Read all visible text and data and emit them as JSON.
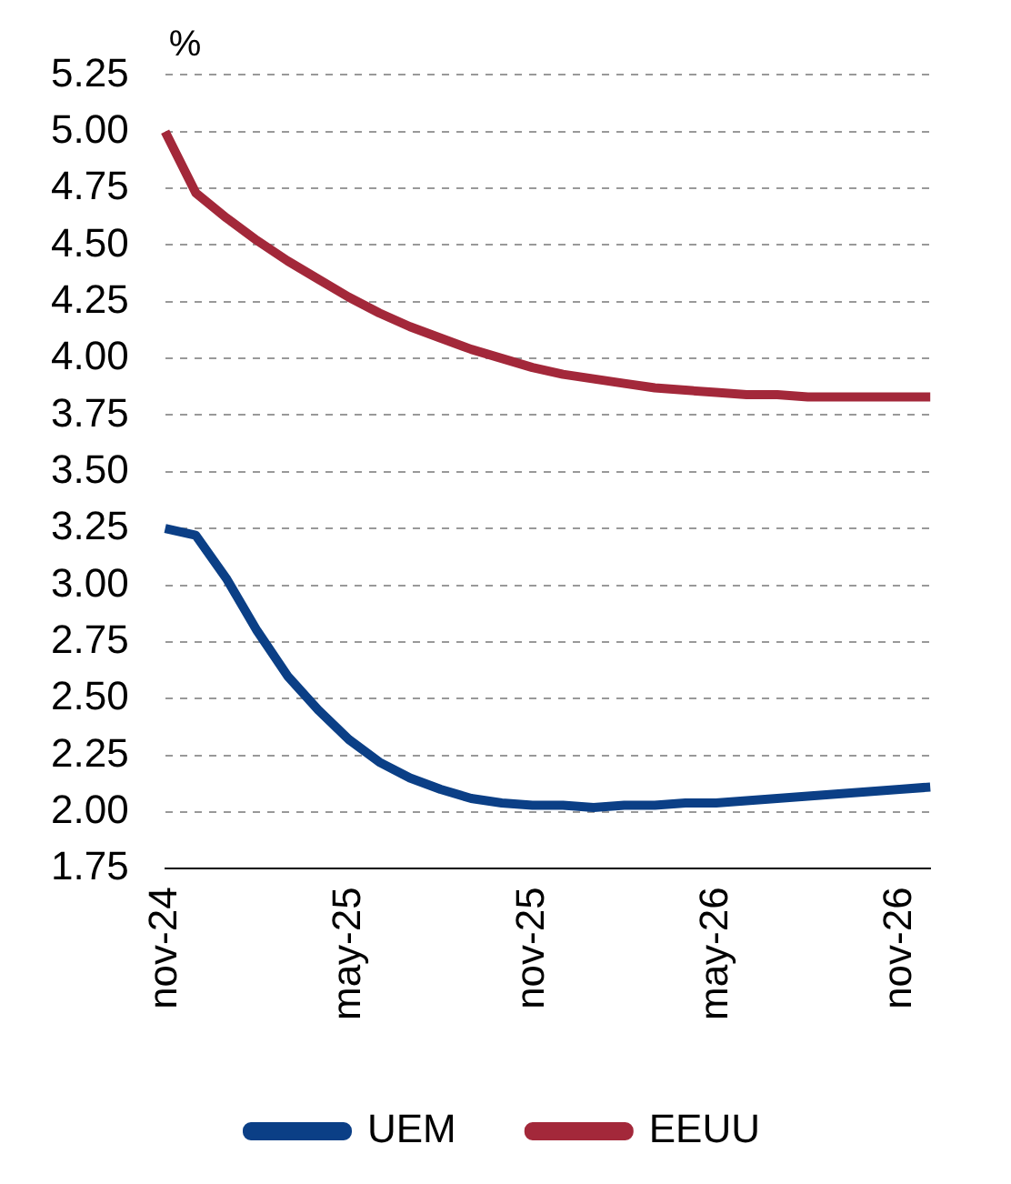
{
  "chart_data": {
    "type": "line",
    "ylabel": "%",
    "categories": [
      "nov-24",
      null,
      null,
      null,
      null,
      null,
      "may-25",
      null,
      null,
      null,
      null,
      null,
      "nov-25",
      null,
      null,
      null,
      null,
      null,
      "may-26",
      null,
      null,
      null,
      null,
      null,
      "nov-26",
      null
    ],
    "series": [
      {
        "name": "UEM",
        "color": "#0b3f86",
        "values": [
          3.25,
          3.22,
          3.03,
          2.8,
          2.6,
          2.45,
          2.32,
          2.22,
          2.15,
          2.1,
          2.06,
          2.04,
          2.03,
          2.03,
          2.02,
          2.03,
          2.03,
          2.04,
          2.04,
          2.05,
          2.06,
          2.07,
          2.08,
          2.09,
          2.1,
          2.11
        ]
      },
      {
        "name": "EEUU",
        "color": "#a3283a",
        "values": [
          5.0,
          4.73,
          4.62,
          4.52,
          4.43,
          4.35,
          4.27,
          4.2,
          4.14,
          4.09,
          4.04,
          4.0,
          3.96,
          3.93,
          3.91,
          3.89,
          3.87,
          3.86,
          3.85,
          3.84,
          3.84,
          3.83,
          3.83,
          3.83,
          3.83,
          3.83
        ]
      }
    ],
    "ylim": [
      1.75,
      5.25
    ],
    "yticks": [
      {
        "value": 1.75,
        "label": "1.75"
      },
      {
        "value": 2,
        "label": "2.00"
      },
      {
        "value": 2.25,
        "label": "2.25"
      },
      {
        "value": 2.5,
        "label": "2.50"
      },
      {
        "value": 2.75,
        "label": "2.75"
      },
      {
        "value": 3,
        "label": "3.00"
      },
      {
        "value": 3.25,
        "label": "3.25"
      },
      {
        "value": 3.5,
        "label": "3.50"
      },
      {
        "value": 3.75,
        "label": "3.75"
      },
      {
        "value": 4,
        "label": "4.00"
      },
      {
        "value": 4.25,
        "label": "4.25"
      },
      {
        "value": 4.5,
        "label": "4.50"
      },
      {
        "value": 4.75,
        "label": "4.75"
      },
      {
        "value": 5,
        "label": "5.00"
      },
      {
        "value": 5.25,
        "label": "5.25"
      }
    ],
    "grid": "y",
    "legend": "bottom",
    "marker": "none",
    "line_style": "solid"
  }
}
